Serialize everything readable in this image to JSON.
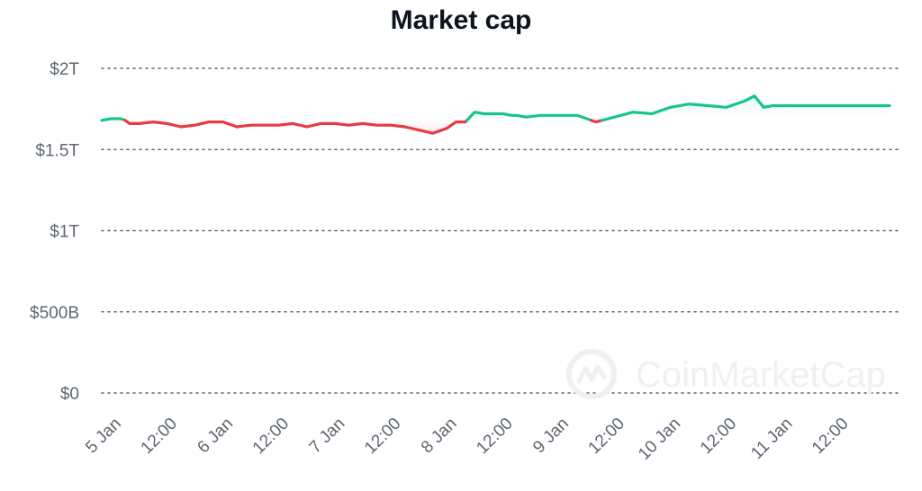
{
  "chart_data": {
    "type": "line",
    "title": "Market cap",
    "xlabel": "",
    "ylabel": "",
    "y_unit": "USD",
    "ylim": [
      0,
      2000000000000
    ],
    "y_ticks": [
      {
        "value": 2000000000000,
        "label": "$2T"
      },
      {
        "value": 1500000000000,
        "label": "$1.5T"
      },
      {
        "value": 1000000000000,
        "label": "$1T"
      },
      {
        "value": 500000000000,
        "label": "$500B"
      },
      {
        "value": 0,
        "label": "$0"
      }
    ],
    "x_ticks": [
      {
        "value": "2024-01-05T00:00",
        "label": "5 Jan"
      },
      {
        "value": "2024-01-05T12:00",
        "label": "12:00"
      },
      {
        "value": "2024-01-06T00:00",
        "label": "6 Jan"
      },
      {
        "value": "2024-01-06T12:00",
        "label": "12:00"
      },
      {
        "value": "2024-01-07T00:00",
        "label": "7 Jan"
      },
      {
        "value": "2024-01-07T12:00",
        "label": "12:00"
      },
      {
        "value": "2024-01-08T00:00",
        "label": "8 Jan"
      },
      {
        "value": "2024-01-08T12:00",
        "label": "12:00"
      },
      {
        "value": "2024-01-09T00:00",
        "label": "9 Jan"
      },
      {
        "value": "2024-01-09T12:00",
        "label": "12:00"
      },
      {
        "value": "2024-01-10T00:00",
        "label": "10 Jan"
      },
      {
        "value": "2024-01-10T12:00",
        "label": "12:00"
      },
      {
        "value": "2024-01-11T00:00",
        "label": "11 Jan"
      },
      {
        "value": "2024-01-11T12:00",
        "label": "12:00"
      }
    ],
    "xlim": [
      "2024-01-04T22:00",
      "2024-01-11T23:00"
    ],
    "baseline": 1680000000000,
    "grid": "horizontal dotted",
    "colors": {
      "above": "#16c784",
      "below": "#ea3943",
      "grid": "#58667e",
      "text": "#5e6673",
      "title": "#0d1421"
    },
    "series": [
      {
        "x": [
          "2024-01-04T22:00",
          "2024-01-05T00:00",
          "2024-01-05T02:00",
          "2024-01-05T03:00",
          "2024-01-05T04:00",
          "2024-01-05T06:00",
          "2024-01-05T09:00",
          "2024-01-05T12:00",
          "2024-01-05T15:00",
          "2024-01-05T18:00",
          "2024-01-05T21:00",
          "2024-01-06T00:00",
          "2024-01-06T03:00",
          "2024-01-06T06:00",
          "2024-01-06T09:00",
          "2024-01-06T12:00",
          "2024-01-06T15:00",
          "2024-01-06T18:00",
          "2024-01-06T21:00",
          "2024-01-07T00:00",
          "2024-01-07T03:00",
          "2024-01-07T06:00",
          "2024-01-07T09:00",
          "2024-01-07T12:00",
          "2024-01-07T15:00",
          "2024-01-07T18:00",
          "2024-01-07T21:00",
          "2024-01-08T00:00",
          "2024-01-08T02:00",
          "2024-01-08T04:00",
          "2024-01-08T06:00",
          "2024-01-08T08:00",
          "2024-01-08T10:00",
          "2024-01-08T12:00",
          "2024-01-08T14:00",
          "2024-01-08T15:00",
          "2024-01-08T17:00",
          "2024-01-08T20:00",
          "2024-01-09T00:00",
          "2024-01-09T04:00",
          "2024-01-09T08:00",
          "2024-01-09T12:00",
          "2024-01-09T16:00",
          "2024-01-09T20:00",
          "2024-01-10T00:00",
          "2024-01-10T04:00",
          "2024-01-10T08:00",
          "2024-01-10T12:00",
          "2024-01-10T14:00",
          "2024-01-10T16:00",
          "2024-01-10T18:00",
          "2024-01-10T20:00",
          "2024-01-10T22:00",
          "2024-01-11T00:00",
          "2024-01-11T01:00",
          "2024-01-11T04:00",
          "2024-01-11T06:00",
          "2024-01-11T08:00",
          "2024-01-11T11:00",
          "2024-01-11T14:00",
          "2024-01-11T16:00",
          "2024-01-11T18:00",
          "2024-01-11T19:00",
          "2024-01-11T20:00",
          "2024-01-11T22:00",
          "2024-01-11T23:00"
        ],
        "values": [
          1680000000000,
          1690000000000,
          1690000000000,
          1680000000000,
          1660000000000,
          1660000000000,
          1670000000000,
          1660000000000,
          1640000000000,
          1650000000000,
          1670000000000,
          1670000000000,
          1640000000000,
          1650000000000,
          1650000000000,
          1650000000000,
          1660000000000,
          1640000000000,
          1660000000000,
          1660000000000,
          1650000000000,
          1660000000000,
          1650000000000,
          1650000000000,
          1640000000000,
          1620000000000,
          1600000000000,
          1630000000000,
          1670000000000,
          1670000000000,
          1730000000000,
          1720000000000,
          1720000000000,
          1720000000000,
          1710000000000,
          1710000000000,
          1700000000000,
          1710000000000,
          1710000000000,
          1710000000000,
          1670000000000,
          1700000000000,
          1730000000000,
          1720000000000,
          1760000000000,
          1780000000000,
          1770000000000,
          1760000000000,
          1780000000000,
          1800000000000,
          1830000000000,
          1760000000000,
          1770000000000,
          1770000000000,
          1770000000000,
          1770000000000,
          1770000000000,
          1770000000000,
          1770000000000,
          1770000000000,
          1770000000000,
          1770000000000,
          1770000000000,
          1770000000000,
          1770000000000,
          1770000000000
        ]
      }
    ]
  },
  "watermark": {
    "text": "CoinMarketCap",
    "icon": "coinmarketcap-logo-icon"
  }
}
